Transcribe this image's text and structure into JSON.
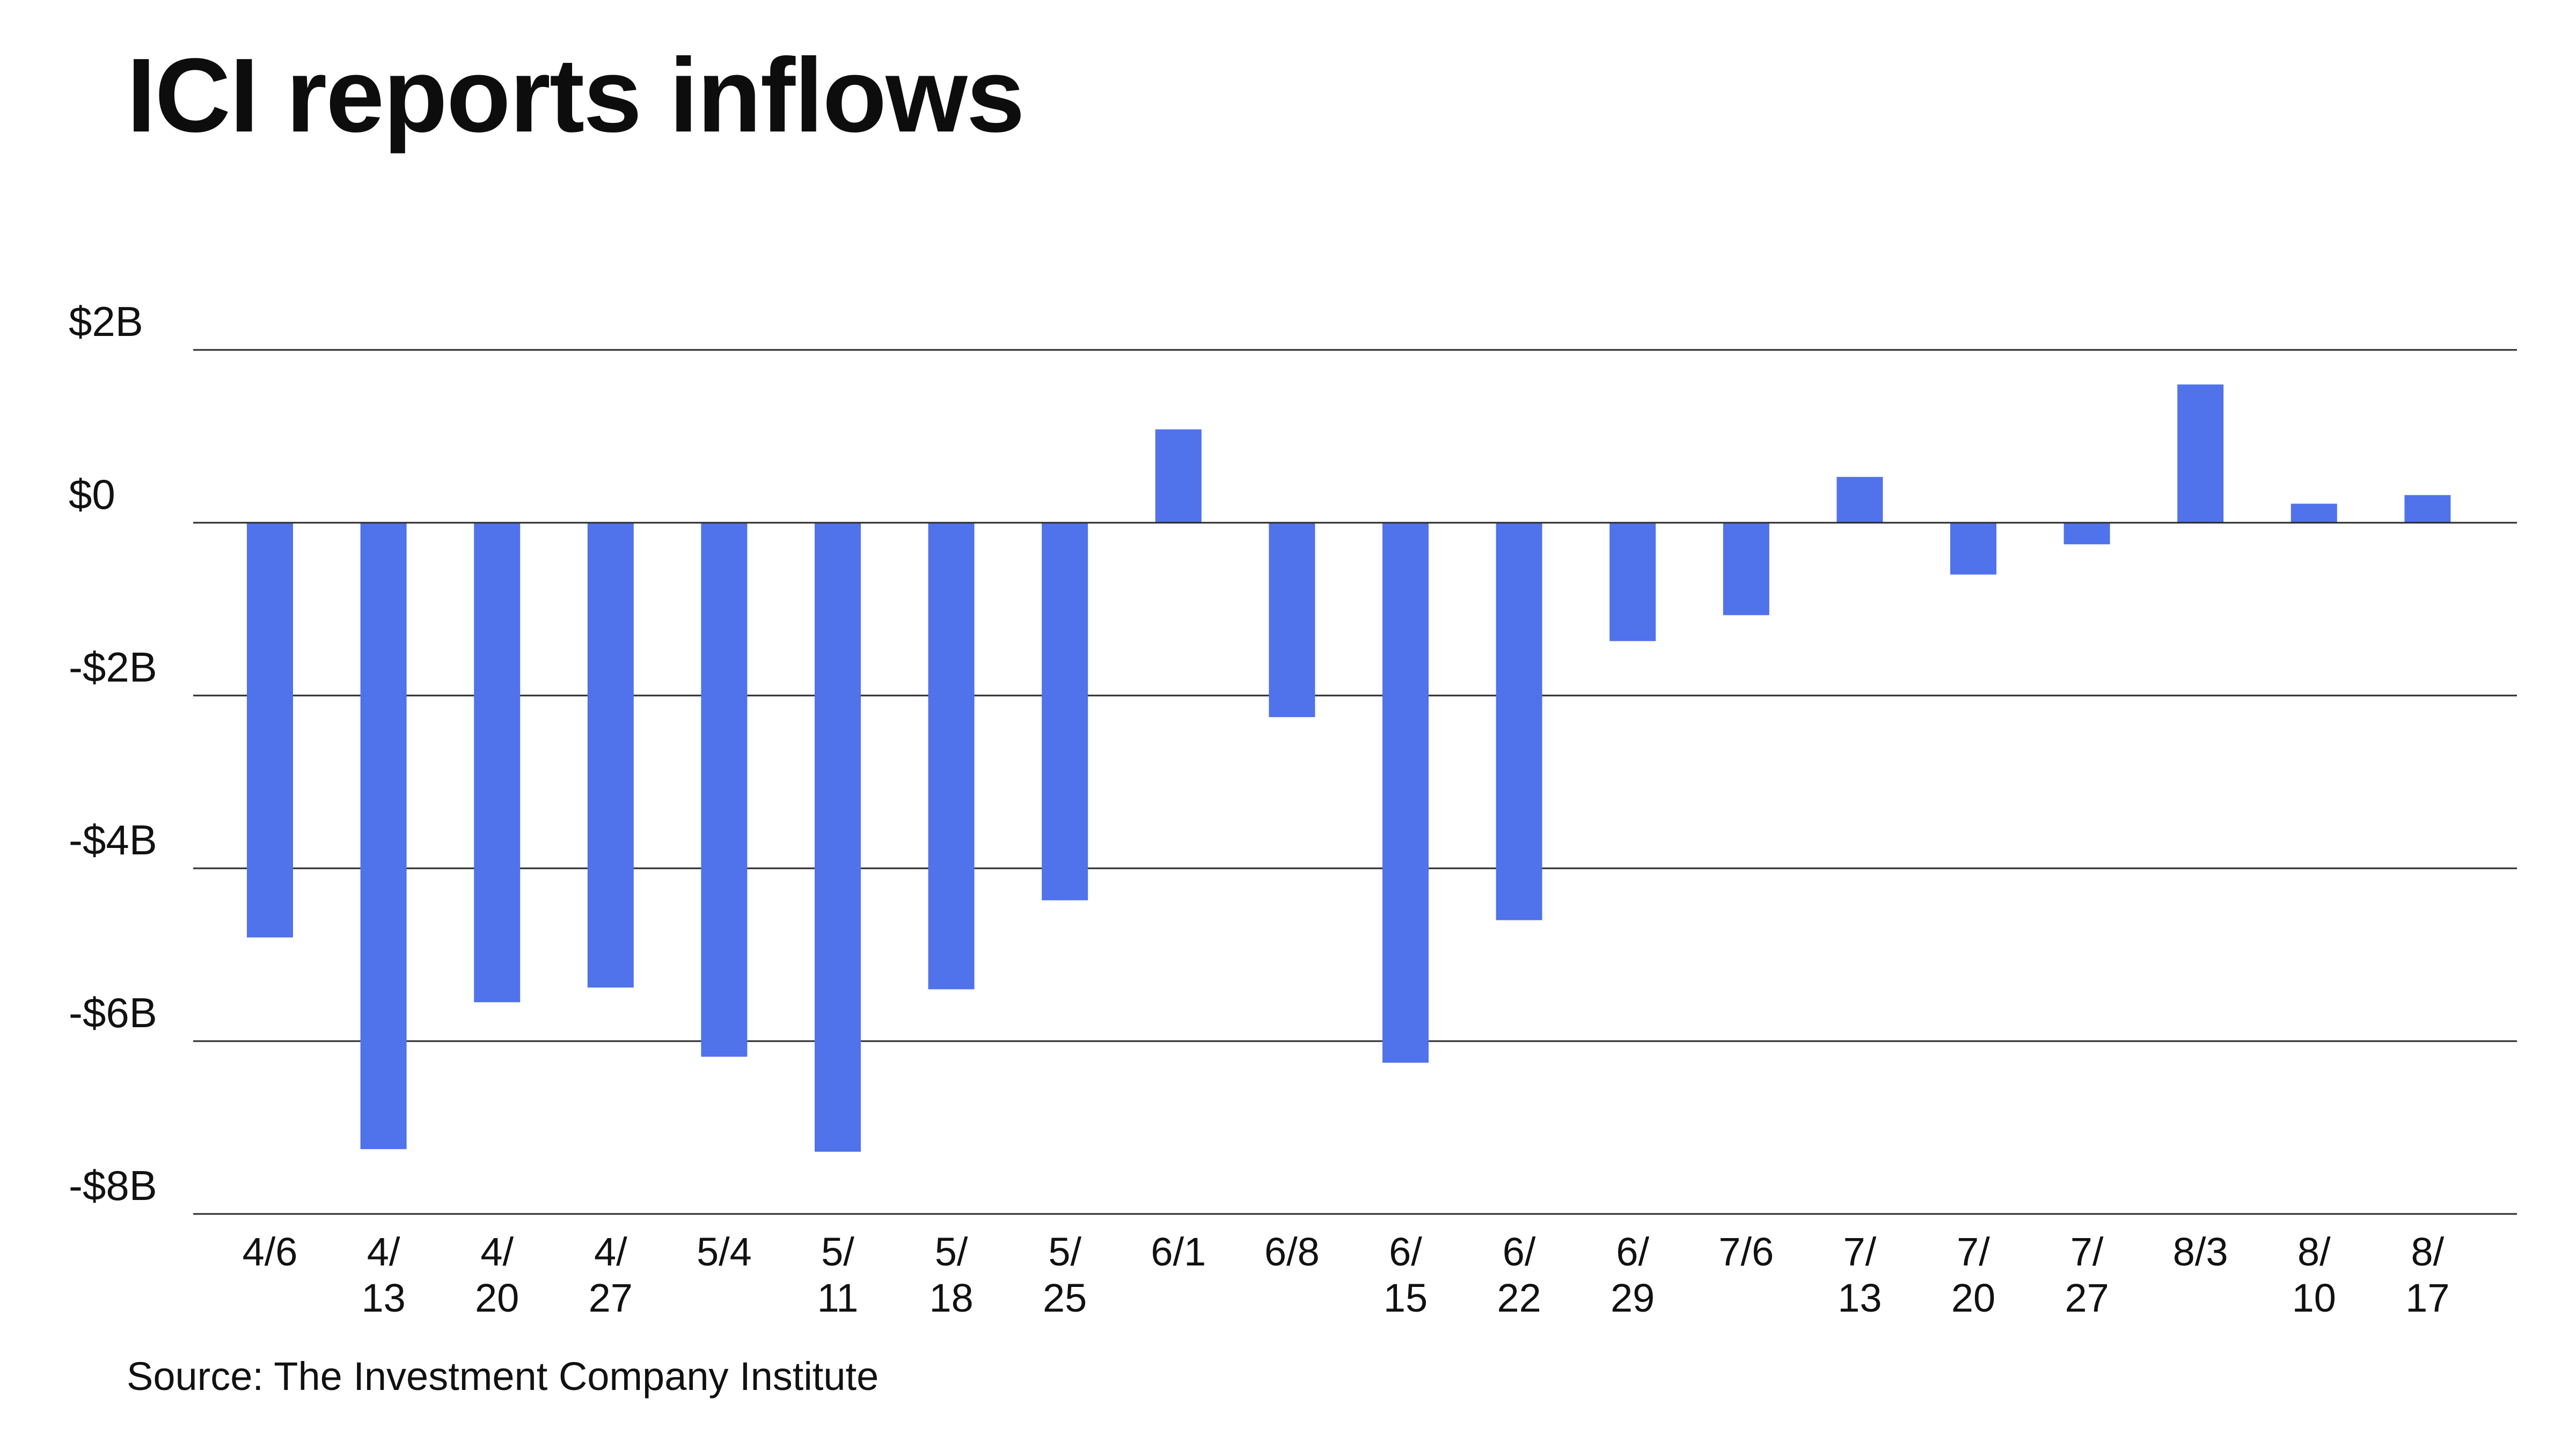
{
  "chart_data": {
    "type": "bar",
    "title": "ICI reports inflows",
    "source": "Source: The Investment Company Institute",
    "xlabel": "",
    "ylabel": "",
    "ylim": [
      -8,
      2
    ],
    "yticks": [
      {
        "value": 2,
        "label": "$2B"
      },
      {
        "value": 0,
        "label": "$0"
      },
      {
        "value": -2,
        "label": "-$2B"
      },
      {
        "value": -4,
        "label": "-$4B"
      },
      {
        "value": -6,
        "label": "-$6B"
      },
      {
        "value": -8,
        "label": "-$8B"
      }
    ],
    "grid": true,
    "bar_color": "#5072ea",
    "categories": [
      "4/6",
      "4/13",
      "4/20",
      "4/27",
      "5/4",
      "5/11",
      "5/18",
      "5/25",
      "6/1",
      "6/8",
      "6/15",
      "6/22",
      "6/29",
      "7/6",
      "7/13",
      "7/20",
      "7/27",
      "8/3",
      "8/10",
      "8/17"
    ],
    "category_labels": [
      [
        "4/6"
      ],
      [
        "4/",
        "13"
      ],
      [
        "4/",
        "20"
      ],
      [
        "4/",
        "27"
      ],
      [
        "5/4"
      ],
      [
        "5/",
        "11"
      ],
      [
        "5/",
        "18"
      ],
      [
        "5/",
        "25"
      ],
      [
        "6/1"
      ],
      [
        "6/8"
      ],
      [
        "6/",
        "15"
      ],
      [
        "6/",
        "22"
      ],
      [
        "6/",
        "29"
      ],
      [
        "7/6"
      ],
      [
        "7/",
        "13"
      ],
      [
        "7/",
        "20"
      ],
      [
        "7/",
        "27"
      ],
      [
        "8/3"
      ],
      [
        "8/",
        "10"
      ],
      [
        "8/",
        "17"
      ]
    ],
    "values": [
      -4.8,
      -7.25,
      -5.55,
      -5.38,
      -6.18,
      -7.28,
      -5.4,
      -4.37,
      1.08,
      -2.25,
      -6.25,
      -4.6,
      -1.37,
      -1.07,
      0.53,
      -0.6,
      -0.25,
      1.6,
      0.22,
      0.32
    ]
  }
}
